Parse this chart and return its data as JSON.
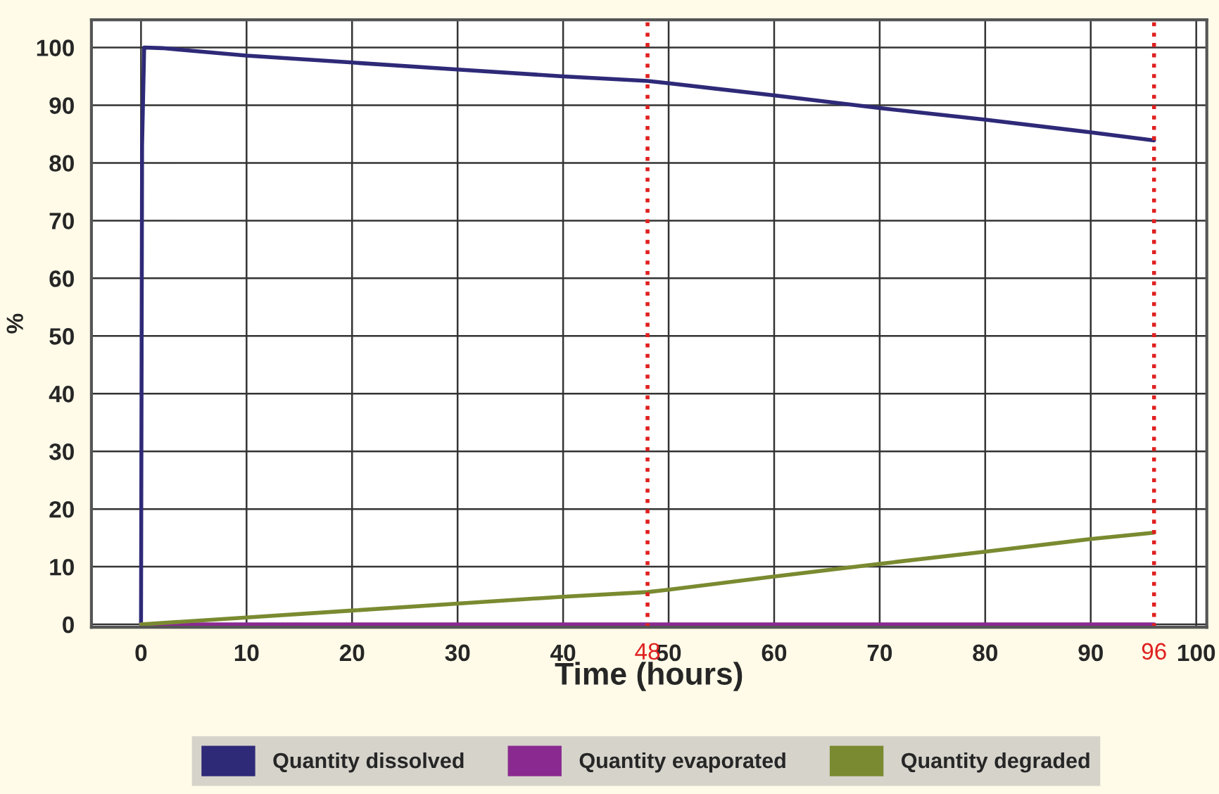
{
  "chart_data": {
    "type": "line",
    "xlabel": "Time (hours)",
    "ylabel": "%",
    "xlim": [
      -4.7,
      101
    ],
    "ylim": [
      -0.5,
      104.8
    ],
    "xticks": [
      0,
      10,
      20,
      30,
      40,
      50,
      60,
      70,
      80,
      90,
      100
    ],
    "yticks": [
      0,
      10,
      20,
      30,
      40,
      50,
      60,
      70,
      80,
      90,
      100
    ],
    "grid": true,
    "legend": "bottom",
    "marker": "none",
    "line_style": "solid",
    "series": [
      {
        "name": "Quantity dissolved",
        "color": "#2e2a78",
        "x": [
          0,
          0.1,
          0.3,
          2,
          10,
          20,
          30,
          40,
          48,
          50,
          60,
          70,
          80,
          90,
          96
        ],
        "values": [
          0,
          83,
          100,
          99.9,
          98.6,
          97.4,
          96.2,
          95,
          94.2,
          93.8,
          91.7,
          89.5,
          87.5,
          85.3,
          83.9
        ]
      },
      {
        "name": "Quantity evaporated",
        "color": "#8a2a90",
        "x": [
          0,
          96
        ],
        "values": [
          0,
          0
        ]
      },
      {
        "name": "Quantity degraded",
        "color": "#7a8a30",
        "x": [
          0,
          10,
          20,
          30,
          40,
          48,
          50,
          60,
          70,
          80,
          90,
          96
        ],
        "values": [
          0,
          1.2,
          2.4,
          3.6,
          4.8,
          5.6,
          6,
          8.3,
          10.5,
          12.6,
          14.8,
          15.9
        ]
      }
    ],
    "ref_lines": [
      {
        "axis": "x",
        "value": 48,
        "label": "48",
        "color": "#e02020",
        "line_style": "dotted"
      },
      {
        "axis": "x",
        "value": 96,
        "label": "96",
        "color": "#e02020",
        "line_style": "dotted"
      }
    ]
  }
}
